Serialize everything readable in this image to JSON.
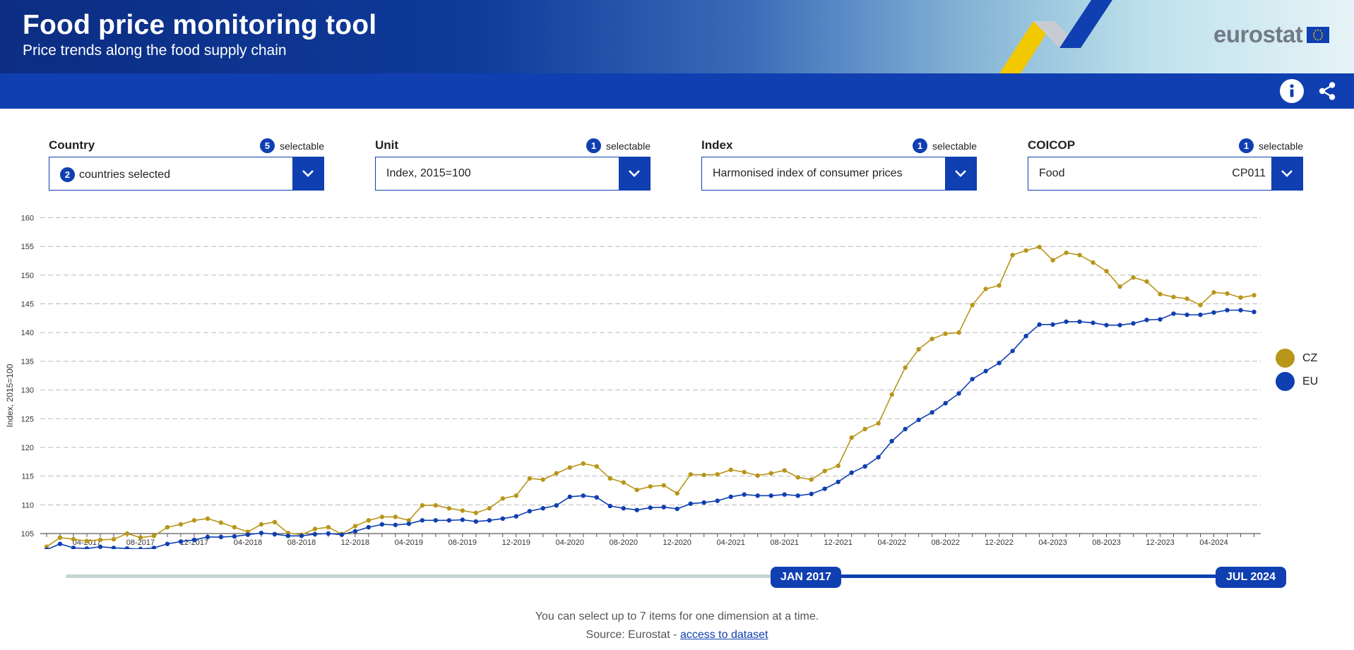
{
  "header": {
    "title": "Food price monitoring tool",
    "subtitle": "Price trends along the food supply chain",
    "logo_text": "eurostat",
    "info_icon": "info-icon",
    "share_icon": "share-icon"
  },
  "filters": [
    {
      "label": "Country",
      "count": "5",
      "count_label": "selectable",
      "value": "countries selected",
      "value_count": "2",
      "code": ""
    },
    {
      "label": "Unit",
      "count": "1",
      "count_label": "selectable",
      "value": "Index, 2015=100",
      "value_count": "",
      "code": ""
    },
    {
      "label": "Index",
      "count": "1",
      "count_label": "selectable",
      "value": "Harmonised index of consumer prices",
      "value_count": "",
      "code": ""
    },
    {
      "label": "COICOP",
      "count": "1",
      "count_label": "selectable",
      "value": "Food",
      "value_count": "",
      "code": "CP011"
    }
  ],
  "chart_data": {
    "type": "line",
    "ylabel": "Index, 2015=100",
    "ylim": [
      101,
      160
    ],
    "yticks": [
      105,
      110,
      115,
      120,
      125,
      130,
      135,
      140,
      145,
      150,
      155,
      160
    ],
    "grid": true,
    "legend_position": "right",
    "start": "2017-01",
    "xtick_labels": [
      "04-2017",
      "08-2017",
      "12-2017",
      "04-2018",
      "08-2018",
      "12-2018",
      "04-2019",
      "08-2019",
      "12-2019",
      "04-2020",
      "08-2020",
      "12-2020",
      "04-2021",
      "08-2021",
      "12-2021",
      "04-2022",
      "08-2022",
      "12-2022",
      "04-2023",
      "08-2023",
      "12-2023",
      "04-2024"
    ],
    "series": [
      {
        "name": "CZ",
        "color": "#b8961a",
        "values": [
          102.7,
          104.3,
          104.0,
          103.7,
          103.9,
          104.0,
          105.0,
          104.3,
          104.6,
          106.1,
          106.6,
          107.3,
          107.6,
          106.9,
          106.1,
          105.3,
          106.6,
          107.0,
          105.1,
          104.8,
          105.8,
          106.1,
          104.9,
          106.3,
          107.3,
          107.9,
          107.9,
          107.3,
          109.9,
          109.9,
          109.4,
          109.0,
          108.6,
          109.4,
          111.1,
          111.6,
          114.6,
          114.4,
          115.5,
          116.5,
          117.2,
          116.7,
          114.6,
          113.9,
          112.6,
          113.2,
          113.4,
          112.0,
          115.3,
          115.2,
          115.3,
          116.1,
          115.7,
          115.1,
          115.5,
          116.0,
          114.8,
          114.4,
          115.9,
          116.8,
          121.7,
          123.2,
          124.2,
          129.2,
          133.9,
          137.1,
          138.9,
          139.8,
          140.0,
          144.8,
          147.6,
          148.2,
          153.5,
          154.3,
          154.9,
          152.6,
          153.9,
          153.5,
          152.2,
          150.7,
          148.0,
          149.6,
          148.9,
          146.7,
          146.2,
          145.9,
          144.8,
          147.0,
          146.8,
          146.1,
          146.5
        ]
      },
      {
        "name": "EU",
        "color": "#0f3fb0",
        "values": [
          102.2,
          103.2,
          102.5,
          102.4,
          102.7,
          102.5,
          102.4,
          102.3,
          102.5,
          103.2,
          103.6,
          103.9,
          104.4,
          104.4,
          104.5,
          104.8,
          105.1,
          104.9,
          104.6,
          104.6,
          104.9,
          105.0,
          104.8,
          105.4,
          106.1,
          106.6,
          106.5,
          106.7,
          107.3,
          107.3,
          107.3,
          107.4,
          107.1,
          107.3,
          107.6,
          108.0,
          108.9,
          109.4,
          109.9,
          111.4,
          111.6,
          111.3,
          109.8,
          109.4,
          109.1,
          109.5,
          109.6,
          109.3,
          110.2,
          110.4,
          110.7,
          111.4,
          111.8,
          111.6,
          111.6,
          111.8,
          111.6,
          111.9,
          112.8,
          114.0,
          115.6,
          116.7,
          118.3,
          121.1,
          123.2,
          124.8,
          126.1,
          127.7,
          129.4,
          131.9,
          133.3,
          134.7,
          136.8,
          139.4,
          141.4,
          141.4,
          141.9,
          141.9,
          141.7,
          141.3,
          141.3,
          141.6,
          142.2,
          142.3,
          143.3,
          143.1,
          143.1,
          143.5,
          143.9,
          143.9,
          143.6
        ]
      }
    ]
  },
  "slider": {
    "start_label": "JAN 2017",
    "end_label": "JUL 2024"
  },
  "footer": {
    "note": "You can select up to 7 items for one dimension at a time.",
    "source_prefix": "Source: Eurostat - ",
    "source_link": "access to dataset"
  }
}
